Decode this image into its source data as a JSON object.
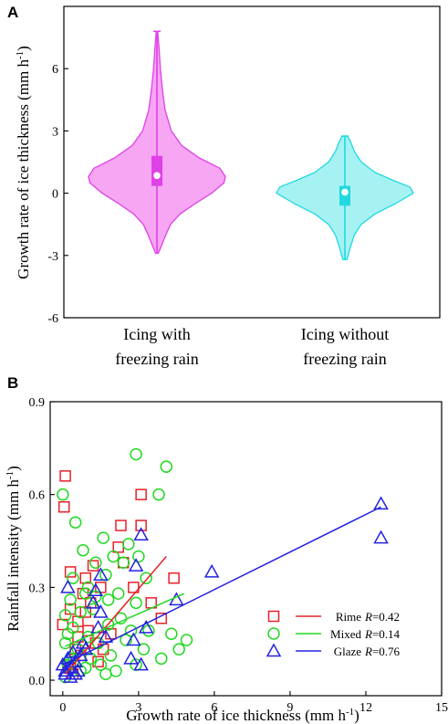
{
  "chart_data": [
    {
      "panel": "A",
      "type": "violin",
      "ylabel_main": "Growth rate of ice thickness",
      "ylabel_unit": "(mm h",
      "ylabel_sup": "-1",
      "ylabel_close": ")",
      "ylim": [
        -6,
        9
      ],
      "yticks": [
        "-6",
        "-3",
        "0",
        "3",
        "6"
      ],
      "categories": [
        {
          "line1": "Icing with",
          "line2": "freezing rain",
          "color": "#e040e8",
          "fill": "#f6a6f2",
          "min": -2.9,
          "max": 7.8,
          "q1": 0.35,
          "q3": 1.8,
          "median": 0.85,
          "density": [
            [
              -2.9,
              0.02
            ],
            [
              -2.5,
              0.07
            ],
            [
              -2.0,
              0.13
            ],
            [
              -1.5,
              0.2
            ],
            [
              -1.0,
              0.34
            ],
            [
              -0.5,
              0.56
            ],
            [
              0.0,
              0.8
            ],
            [
              0.5,
              0.98
            ],
            [
              0.8,
              1.0
            ],
            [
              1.2,
              0.92
            ],
            [
              1.7,
              0.62
            ],
            [
              2.3,
              0.36
            ],
            [
              3.0,
              0.21
            ],
            [
              4.0,
              0.12
            ],
            [
              5.0,
              0.08
            ],
            [
              6.0,
              0.05
            ],
            [
              7.0,
              0.03
            ],
            [
              7.8,
              0.01
            ]
          ]
        },
        {
          "line1": "Icing without",
          "line2": "freezing rain",
          "color": "#22d8e0",
          "fill": "#a6f2f2",
          "min": -3.2,
          "max": 2.75,
          "q1": -0.6,
          "q3": 0.35,
          "median": 0.05,
          "density": [
            [
              -3.2,
              0.03
            ],
            [
              -2.6,
              0.08
            ],
            [
              -2.0,
              0.14
            ],
            [
              -1.5,
              0.24
            ],
            [
              -1.0,
              0.44
            ],
            [
              -0.5,
              0.74
            ],
            [
              0.0,
              1.0
            ],
            [
              0.3,
              0.95
            ],
            [
              0.6,
              0.72
            ],
            [
              1.0,
              0.44
            ],
            [
              1.5,
              0.24
            ],
            [
              2.0,
              0.14
            ],
            [
              2.5,
              0.08
            ],
            [
              2.75,
              0.04
            ]
          ]
        }
      ]
    },
    {
      "panel": "B",
      "type": "scatter",
      "xlabel_main": "Growth rate of ice thickness (mm h",
      "xlabel_sup": "-1",
      "xlabel_close": ")",
      "ylabel_main": "Rainfall intensity (mm h",
      "ylabel_sup": "-1",
      "ylabel_close": ")",
      "xlim": [
        -0.5,
        15
      ],
      "ylim": [
        -0.05,
        0.9
      ],
      "xticks": [
        "0",
        "3",
        "6",
        "9",
        "12",
        "15"
      ],
      "yticks": [
        "0.0",
        "0.3",
        "0.6",
        "0.9"
      ],
      "legend_position": "bottom-right",
      "series": [
        {
          "name": "Rime",
          "r_label": "R",
          "r_value": "=0.42",
          "color": "#e8202a",
          "marker": "square",
          "fit": [
            [
              0.1,
              0.02
            ],
            [
              4.1,
              0.4
            ]
          ],
          "points": [
            [
              0.1,
              0.66
            ],
            [
              0.05,
              0.56
            ],
            [
              0.3,
              0.35
            ],
            [
              0.9,
              0.33
            ],
            [
              0.3,
              0.23
            ],
            [
              0.0,
              0.18
            ],
            [
              0.6,
              0.19
            ],
            [
              0.8,
              0.28
            ],
            [
              1.2,
              0.37
            ],
            [
              1.0,
              0.16
            ],
            [
              1.3,
              0.12
            ],
            [
              0.5,
              0.1
            ],
            [
              0.7,
              0.08
            ],
            [
              1.4,
              0.06
            ],
            [
              0.3,
              0.04
            ],
            [
              0.4,
              0.02
            ],
            [
              0.2,
              0.05
            ],
            [
              0.9,
              0.22
            ],
            [
              1.5,
              0.3
            ],
            [
              2.2,
              0.43
            ],
            [
              2.3,
              0.5
            ],
            [
              2.4,
              0.38
            ],
            [
              2.8,
              0.3
            ],
            [
              3.1,
              0.6
            ],
            [
              3.1,
              0.5
            ],
            [
              3.5,
              0.25
            ],
            [
              3.9,
              0.2
            ],
            [
              4.4,
              0.33
            ],
            [
              1.9,
              0.15
            ],
            [
              1.6,
              0.1
            ],
            [
              0.6,
              0.14
            ],
            [
              1.1,
              0.25
            ]
          ]
        },
        {
          "name": "Mixed",
          "r_label": "R",
          "r_value": "=0.14",
          "color": "#22d822",
          "marker": "circle",
          "fit": [
            [
              0.1,
              0.11
            ],
            [
              4.8,
              0.28
            ]
          ],
          "points": [
            [
              0.0,
              0.6
            ],
            [
              0.5,
              0.51
            ],
            [
              2.9,
              0.73
            ],
            [
              4.1,
              0.69
            ],
            [
              3.8,
              0.6
            ],
            [
              1.6,
              0.46
            ],
            [
              2.6,
              0.44
            ],
            [
              2.0,
              0.4
            ],
            [
              1.3,
              0.38
            ],
            [
              0.8,
              0.42
            ],
            [
              0.4,
              0.33
            ],
            [
              1.0,
              0.3
            ],
            [
              2.2,
              0.28
            ],
            [
              0.3,
              0.26
            ],
            [
              2.9,
              0.25
            ],
            [
              0.1,
              0.21
            ],
            [
              0.7,
              0.22
            ],
            [
              1.2,
              0.23
            ],
            [
              2.3,
              0.2
            ],
            [
              1.8,
              0.18
            ],
            [
              3.4,
              0.16
            ],
            [
              0.4,
              0.17
            ],
            [
              0.2,
              0.15
            ],
            [
              1.0,
              0.14
            ],
            [
              2.5,
              0.13
            ],
            [
              1.4,
              0.12
            ],
            [
              4.3,
              0.15
            ],
            [
              4.9,
              0.13
            ],
            [
              4.6,
              0.1
            ],
            [
              3.9,
              0.07
            ],
            [
              0.6,
              0.1
            ],
            [
              0.1,
              0.12
            ],
            [
              1.9,
              0.08
            ],
            [
              1.1,
              0.07
            ],
            [
              0.4,
              0.06
            ],
            [
              0.9,
              0.04
            ],
            [
              0.2,
              0.05
            ],
            [
              1.5,
              0.05
            ],
            [
              2.1,
              0.03
            ],
            [
              2.9,
              0.05
            ],
            [
              0.7,
              0.03
            ],
            [
              1.7,
              0.02
            ],
            [
              0.1,
              0.01
            ],
            [
              3.2,
              0.1
            ],
            [
              2.7,
              0.16
            ],
            [
              1.3,
              0.27
            ],
            [
              3.3,
              0.33
            ],
            [
              3.0,
              0.4
            ],
            [
              2.4,
              0.38
            ],
            [
              1.7,
              0.34
            ],
            [
              0.9,
              0.28
            ],
            [
              0.3,
              0.07
            ],
            [
              1.8,
              0.26
            ]
          ]
        },
        {
          "name": "Glaze",
          "r_label": "R",
          "r_value": "=0.76",
          "color": "#2222e0",
          "marker": "triangle",
          "fit": [
            [
              0.0,
              0.05
            ],
            [
              12.6,
              0.56
            ]
          ],
          "points": [
            [
              12.6,
              0.57
            ],
            [
              12.6,
              0.46
            ],
            [
              5.9,
              0.35
            ],
            [
              4.5,
              0.26
            ],
            [
              3.1,
              0.47
            ],
            [
              2.9,
              0.37
            ],
            [
              3.3,
              0.17
            ],
            [
              2.8,
              0.13
            ],
            [
              2.7,
              0.07
            ],
            [
              3.1,
              0.05
            ],
            [
              1.5,
              0.34
            ],
            [
              1.3,
              0.29
            ],
            [
              1.2,
              0.25
            ],
            [
              1.5,
              0.22
            ],
            [
              0.2,
              0.3
            ],
            [
              1.7,
              0.14
            ],
            [
              1.4,
              0.17
            ],
            [
              0.9,
              0.1
            ],
            [
              0.7,
              0.08
            ],
            [
              0.5,
              0.06
            ],
            [
              0.3,
              0.04
            ],
            [
              0.1,
              0.02
            ],
            [
              0.0,
              0.05
            ],
            [
              0.4,
              0.09
            ],
            [
              0.6,
              0.03
            ],
            [
              0.2,
              0.07
            ],
            [
              0.8,
              0.12
            ],
            [
              0.1,
              0.03
            ],
            [
              0.3,
              0.01
            ],
            [
              0.5,
              0.02
            ]
          ]
        }
      ]
    }
  ]
}
